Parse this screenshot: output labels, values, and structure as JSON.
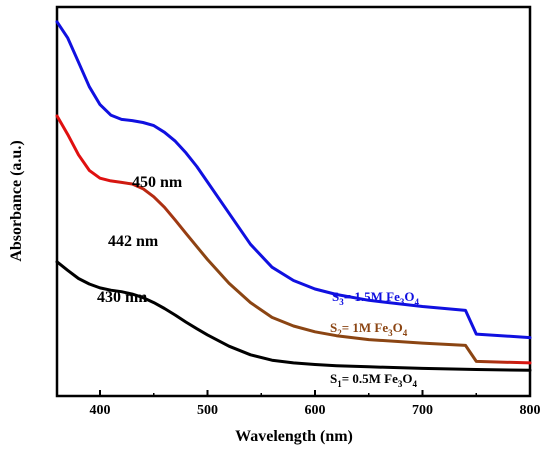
{
  "chart_data": {
    "type": "line",
    "title": "",
    "xlabel": "Wavelength (nm)",
    "ylabel": "Absorbance (a.u.)",
    "xlim": [
      360,
      800
    ],
    "ylim": [
      0,
      1
    ],
    "x_ticks": [
      400,
      500,
      600,
      700,
      800
    ],
    "y_ticks_shown": false,
    "grid": false,
    "series": [
      {
        "name": "S3= 1.5M Fe3O4",
        "label_parts": [
          "S",
          "3",
          "= 1.5M Fe",
          "3",
          "O",
          "4"
        ],
        "color": "#1010e0",
        "peak_label": "450 nm",
        "x": [
          360,
          370,
          380,
          390,
          400,
          410,
          420,
          430,
          440,
          450,
          460,
          470,
          480,
          490,
          500,
          520,
          540,
          560,
          580,
          600,
          620,
          650,
          700,
          740,
          750,
          800
        ],
        "y": [
          0.962,
          0.92,
          0.858,
          0.795,
          0.749,
          0.722,
          0.711,
          0.708,
          0.703,
          0.695,
          0.678,
          0.655,
          0.625,
          0.59,
          0.55,
          0.47,
          0.39,
          0.331,
          0.297,
          0.275,
          0.261,
          0.246,
          0.23,
          0.22,
          0.159,
          0.15
        ]
      },
      {
        "name": "S2= 1M Fe3O4",
        "label_parts": [
          "S",
          "2",
          "= 1M Fe",
          "3",
          "O",
          "4"
        ],
        "color_start": "#e01010",
        "color": "#8b4513",
        "peak_label": "442 nm",
        "x": [
          360,
          370,
          380,
          390,
          400,
          410,
          420,
          430,
          440,
          450,
          460,
          470,
          480,
          490,
          500,
          520,
          540,
          560,
          580,
          600,
          620,
          650,
          700,
          740,
          750,
          800
        ],
        "y": [
          0.72,
          0.672,
          0.62,
          0.58,
          0.56,
          0.553,
          0.549,
          0.545,
          0.533,
          0.512,
          0.485,
          0.452,
          0.418,
          0.384,
          0.351,
          0.29,
          0.24,
          0.202,
          0.18,
          0.165,
          0.155,
          0.145,
          0.136,
          0.13,
          0.089,
          0.085
        ]
      },
      {
        "name": "S1= 0.5M Fe3O4",
        "label_parts": [
          "S",
          "1",
          "= 0.5M Fe",
          "3",
          "O",
          "4"
        ],
        "color": "#000000",
        "peak_label": "430 nm",
        "x": [
          360,
          370,
          380,
          390,
          400,
          410,
          420,
          430,
          440,
          450,
          460,
          470,
          480,
          490,
          500,
          520,
          540,
          560,
          580,
          600,
          620,
          650,
          700,
          750,
          800
        ],
        "y": [
          0.345,
          0.323,
          0.302,
          0.288,
          0.278,
          0.272,
          0.268,
          0.262,
          0.253,
          0.24,
          0.225,
          0.208,
          0.19,
          0.173,
          0.157,
          0.128,
          0.106,
          0.092,
          0.085,
          0.081,
          0.078,
          0.075,
          0.071,
          0.068,
          0.066
        ]
      }
    ]
  }
}
